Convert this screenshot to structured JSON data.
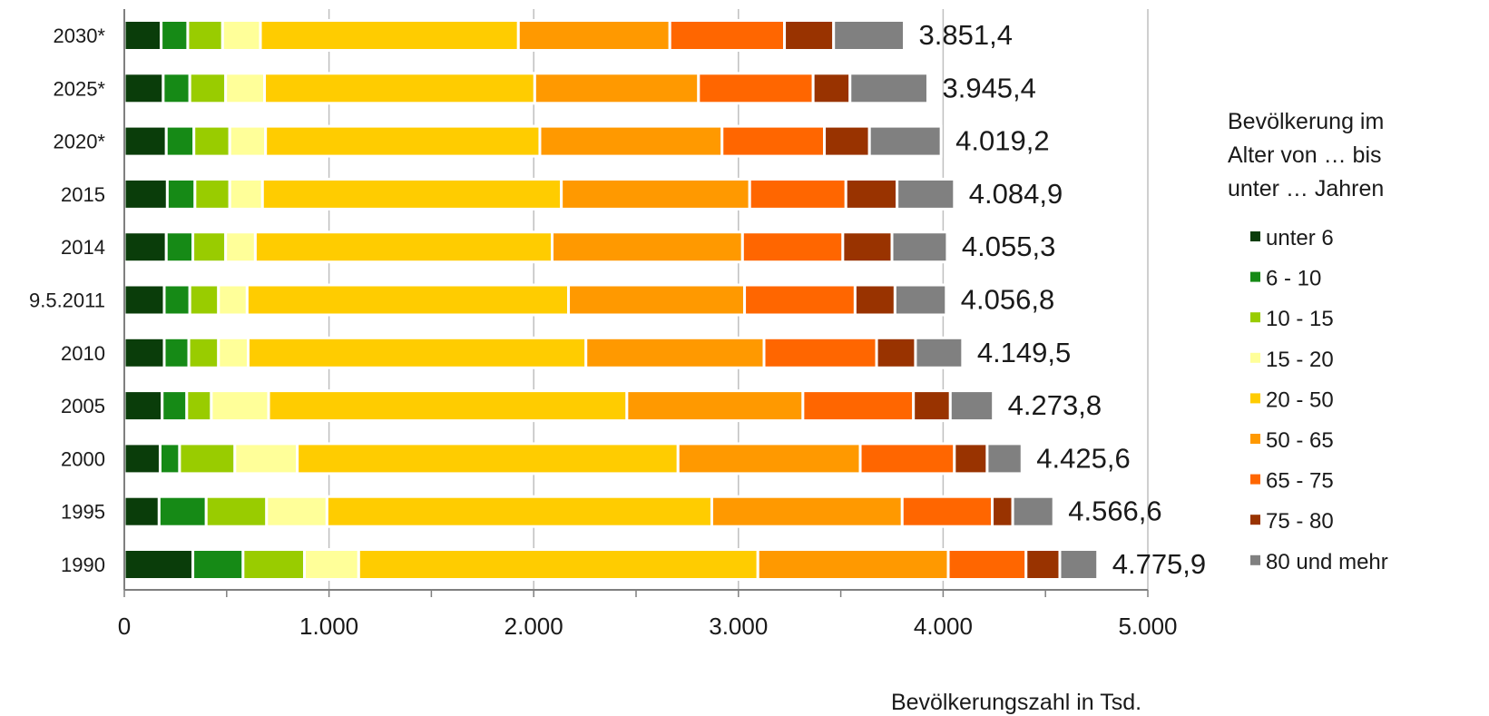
{
  "chart_data": {
    "type": "bar",
    "orientation": "horizontal",
    "stacked": true,
    "xlabel": "Bevölkerungszahl in Tsd.",
    "xlim": [
      0,
      5000
    ],
    "xticks": [
      {
        "value": 0,
        "label": "0"
      },
      {
        "value": 1000,
        "label": "1.000"
      },
      {
        "value": 2000,
        "label": "2.000"
      },
      {
        "value": 3000,
        "label": "3.000"
      },
      {
        "value": 4000,
        "label": "4.000"
      },
      {
        "value": 5000,
        "label": "5.000"
      }
    ],
    "grid": "vertical",
    "legend": {
      "position": "right",
      "title_lines": [
        "Bevölkerung im",
        "Alter von … bis",
        "unter … Jahren"
      ]
    },
    "categories": [
      "2030*",
      "2025*",
      "2020*",
      "2015",
      "2014",
      "9.5.2011",
      "2010",
      "2005",
      "2000",
      "1995",
      "1990"
    ],
    "totals": [
      "3.851,4",
      "3.945,4",
      "4.019,2",
      "4.084,9",
      "4.055,3",
      "4.056,8",
      "4.149,5",
      "4.273,8",
      "4.425,6",
      "4.566,6",
      "4.775,9"
    ],
    "series": [
      {
        "name": "unter 6",
        "color": "#0a3d0a",
        "values": [
          180,
          190,
          205,
          210,
          205,
          195,
          195,
          185,
          175,
          170,
          335
        ]
      },
      {
        "name": "6 - 10",
        "color": "#168a16",
        "values": [
          130,
          130,
          135,
          135,
          130,
          125,
          120,
          120,
          95,
          230,
          245
        ]
      },
      {
        "name": "10 - 15",
        "color": "#99cc00",
        "values": [
          170,
          175,
          175,
          170,
          160,
          140,
          145,
          120,
          270,
          295,
          300
        ]
      },
      {
        "name": "15 - 20",
        "color": "#ffff99",
        "values": [
          185,
          190,
          175,
          160,
          145,
          140,
          145,
          280,
          305,
          295,
          265
        ]
      },
      {
        "name": "20 - 50",
        "color": "#ffcc00",
        "values": [
          1260,
          1320,
          1340,
          1460,
          1450,
          1570,
          1650,
          1750,
          1860,
          1880,
          1950
        ]
      },
      {
        "name": "50 - 65",
        "color": "#ff9900",
        "values": [
          740,
          800,
          890,
          920,
          930,
          860,
          870,
          860,
          890,
          930,
          930
        ]
      },
      {
        "name": "65 - 75",
        "color": "#ff6600",
        "values": [
          560,
          560,
          500,
          470,
          490,
          540,
          550,
          540,
          460,
          440,
          380
        ]
      },
      {
        "name": "75 - 80",
        "color": "#993300",
        "values": [
          240,
          180,
          220,
          250,
          240,
          195,
          190,
          180,
          160,
          100,
          165
        ]
      },
      {
        "name": "80 und mehr",
        "color": "#808080",
        "values": [
          345,
          380,
          350,
          280,
          270,
          250,
          230,
          210,
          170,
          200,
          185
        ]
      }
    ]
  }
}
